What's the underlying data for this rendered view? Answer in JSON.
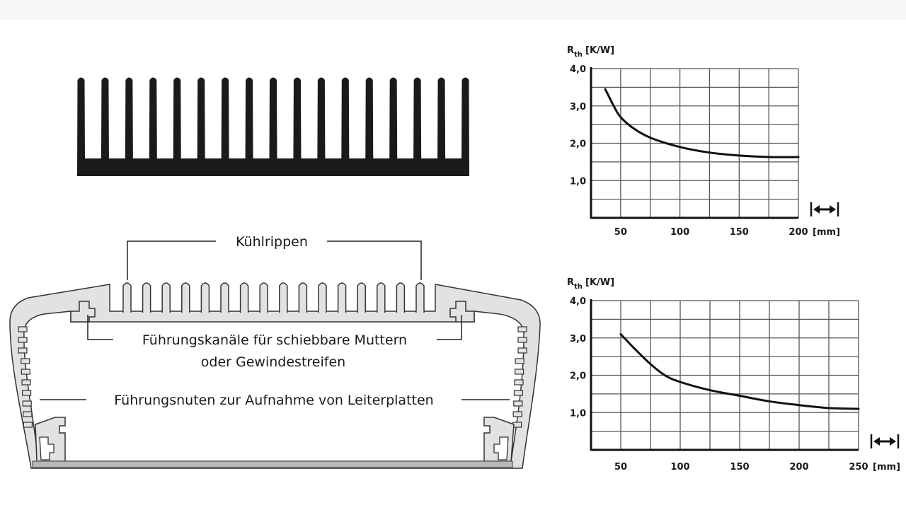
{
  "labels": {
    "cooling_fins": "Kühlrippen",
    "guide_channels_line1": "Führungskanäle für schiebbare Muttern",
    "guide_channels_line2": "oder Gewindestreifen",
    "guide_grooves": "Führungsnuten zur Aufnahme von Leiterplatten"
  },
  "colors": {
    "heatsink_profile": "#1a1a1a",
    "enclosure_fill": "#e2e2e2",
    "enclosure_outline": "#333333",
    "base_strip": "#b9b9b9",
    "grid": "#555555"
  },
  "chart_data": [
    {
      "type": "line",
      "ylabel_symbol": "R",
      "ylabel_subscript": "th",
      "ylabel_unit": "[K/W]",
      "xlabel_unit": "[mm]",
      "length_icon": "double-arrow-length-icon",
      "xlim": [
        25,
        200
      ],
      "ylim": [
        0,
        4
      ],
      "grid": true,
      "x_ticks": [
        50,
        100,
        150,
        200
      ],
      "y_ticks": [
        "1,0",
        "2,0",
        "3,0",
        "4,0"
      ],
      "y_tick_values": [
        1,
        2,
        3,
        4
      ],
      "series": [
        {
          "x": [
            37,
            45,
            50,
            60,
            75,
            100,
            125,
            150,
            175,
            200
          ],
          "y": [
            3.45,
            2.95,
            2.7,
            2.42,
            2.15,
            1.9,
            1.75,
            1.67,
            1.63,
            1.63
          ]
        }
      ]
    },
    {
      "type": "line",
      "ylabel_symbol": "R",
      "ylabel_subscript": "th",
      "ylabel_unit": "[K/W]",
      "xlabel_unit": "[mm]",
      "length_icon": "double-arrow-length-icon",
      "xlim": [
        25,
        250
      ],
      "ylim": [
        0,
        4
      ],
      "grid": true,
      "x_ticks": [
        50,
        100,
        150,
        200,
        250
      ],
      "y_ticks": [
        "1,0",
        "2,0",
        "3,0",
        "4,0"
      ],
      "y_tick_values": [
        1,
        2,
        3,
        4
      ],
      "series": [
        {
          "x": [
            50,
            62,
            75,
            87,
            100,
            125,
            150,
            175,
            200,
            225,
            250
          ],
          "y": [
            3.1,
            2.7,
            2.3,
            2.0,
            1.82,
            1.6,
            1.45,
            1.3,
            1.2,
            1.12,
            1.1
          ]
        }
      ]
    }
  ]
}
